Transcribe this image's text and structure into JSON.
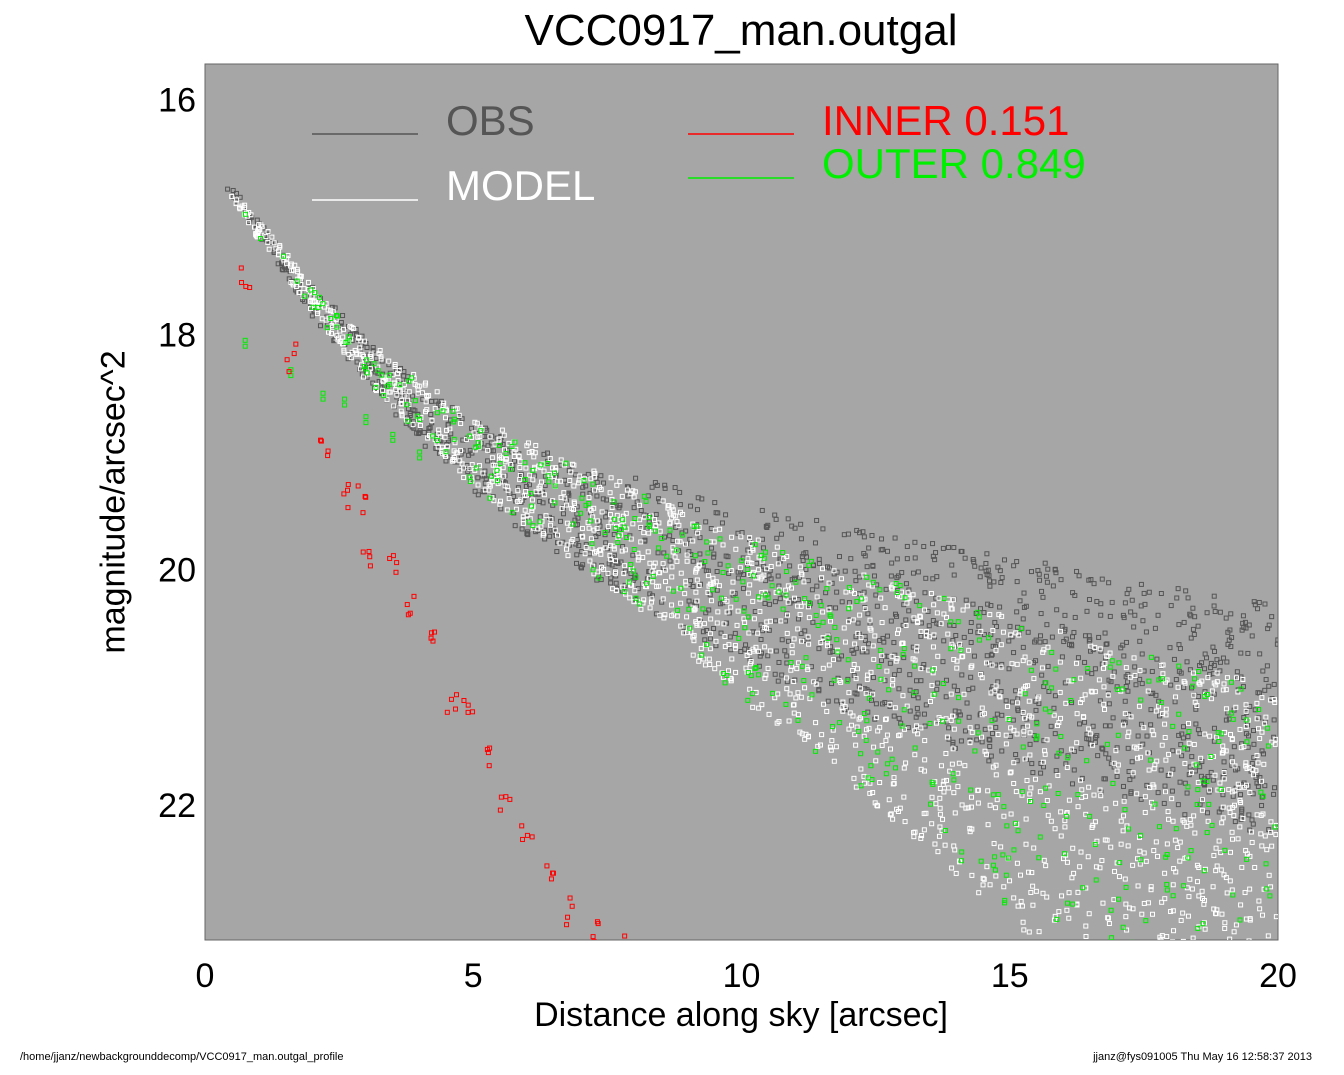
{
  "page": {
    "title": "VCC0917_man.outgal",
    "footer_left": "/home/jjanz/newbackgrounddecomp/VCC0917_man.outgal_profile",
    "footer_right": "jjanz@fys091005  Thu May 16 12:58:37 2013"
  },
  "chart_data": {
    "type": "scatter",
    "title": "VCC0917_man.outgal",
    "xlabel": "Distance along sky [arcsec]",
    "ylabel": "magnitude/arcsec^2",
    "xlim": [
      0,
      20
    ],
    "ylim": [
      23.15,
      15.7
    ],
    "y_inverted": true,
    "x_ticks": [
      "0",
      "5",
      "10",
      "15",
      "20"
    ],
    "y_ticks": [
      "16",
      "18",
      "20",
      "22"
    ],
    "background_color": "#a6a6a6",
    "grid": false,
    "legend": [
      {
        "name": "OBS",
        "value": "",
        "color": "#555555",
        "text_color": "#555555"
      },
      {
        "name": "MODEL",
        "value": "",
        "color": "#ffffff",
        "text_color": "#ffffff"
      },
      {
        "name": "INNER",
        "value": "0.151",
        "color": "#ff0000",
        "text_color": "#ff0000"
      },
      {
        "name": "OUTER",
        "value": "0.849",
        "color": "#00ee00",
        "text_color": "#00ee00"
      }
    ],
    "series": [
      {
        "name": "OBS",
        "color": "#555555",
        "profile": [
          [
            0.4,
            16.75
          ],
          [
            1,
            17.1
          ],
          [
            2,
            17.7
          ],
          [
            3,
            18.2
          ],
          [
            4,
            18.65
          ],
          [
            5,
            19.0
          ],
          [
            6,
            19.3
          ],
          [
            8,
            19.7
          ],
          [
            10,
            20.05
          ],
          [
            12,
            20.35
          ],
          [
            15,
            20.7
          ],
          [
            18,
            21.0
          ],
          [
            20,
            21.2
          ]
        ],
        "scatter_range": [
          [
            1,
            0.15
          ],
          [
            5,
            0.6
          ],
          [
            10,
            1.4
          ],
          [
            15,
            1.8
          ],
          [
            20,
            2.0
          ]
        ]
      },
      {
        "name": "MODEL",
        "color": "#ffffff",
        "upper_edge": [
          [
            0.4,
            16.75
          ],
          [
            1,
            17.0
          ],
          [
            2,
            17.6
          ],
          [
            3,
            18.05
          ],
          [
            5,
            18.7
          ],
          [
            8,
            19.3
          ],
          [
            10,
            19.7
          ],
          [
            15,
            20.4
          ],
          [
            20,
            21.0
          ]
        ],
        "lower_edge": [
          [
            0.4,
            16.8
          ],
          [
            1,
            17.2
          ],
          [
            3,
            18.4
          ],
          [
            5,
            19.3
          ],
          [
            8,
            20.3
          ],
          [
            10,
            21.1
          ],
          [
            12,
            21.8
          ],
          [
            15,
            23.0
          ],
          [
            16,
            23.4
          ]
        ]
      },
      {
        "name": "INNER",
        "color": "#ff0000",
        "points": [
          [
            0.75,
            17.55
          ],
          [
            1.6,
            18.2
          ],
          [
            2.2,
            19.0
          ],
          [
            2.6,
            19.35
          ],
          [
            2.9,
            19.4
          ],
          [
            3.0,
            19.9
          ],
          [
            3.5,
            20.0
          ],
          [
            3.8,
            20.3
          ],
          [
            4.3,
            20.6
          ],
          [
            4.6,
            21.1
          ],
          [
            4.9,
            21.2
          ],
          [
            5.3,
            21.6
          ],
          [
            5.6,
            22.0
          ],
          [
            6.0,
            22.3
          ],
          [
            6.4,
            22.6
          ],
          [
            6.8,
            22.9
          ],
          [
            7.3,
            23.1
          ],
          [
            7.8,
            23.2
          ]
        ]
      },
      {
        "name": "OUTER",
        "color": "#00ee00",
        "points": [
          [
            0.75,
            18.05
          ],
          [
            1.6,
            18.3
          ],
          [
            2.2,
            18.5
          ],
          [
            2.6,
            18.55
          ],
          [
            3.0,
            18.7
          ],
          [
            3.5,
            18.85
          ],
          [
            4.0,
            19.0
          ],
          [
            5,
            19.2
          ],
          [
            6,
            19.5
          ],
          [
            8,
            19.7
          ],
          [
            10,
            20.1
          ],
          [
            12,
            20.6
          ],
          [
            15,
            21.2
          ],
          [
            18,
            21.6
          ],
          [
            20,
            22.0
          ]
        ]
      }
    ]
  }
}
